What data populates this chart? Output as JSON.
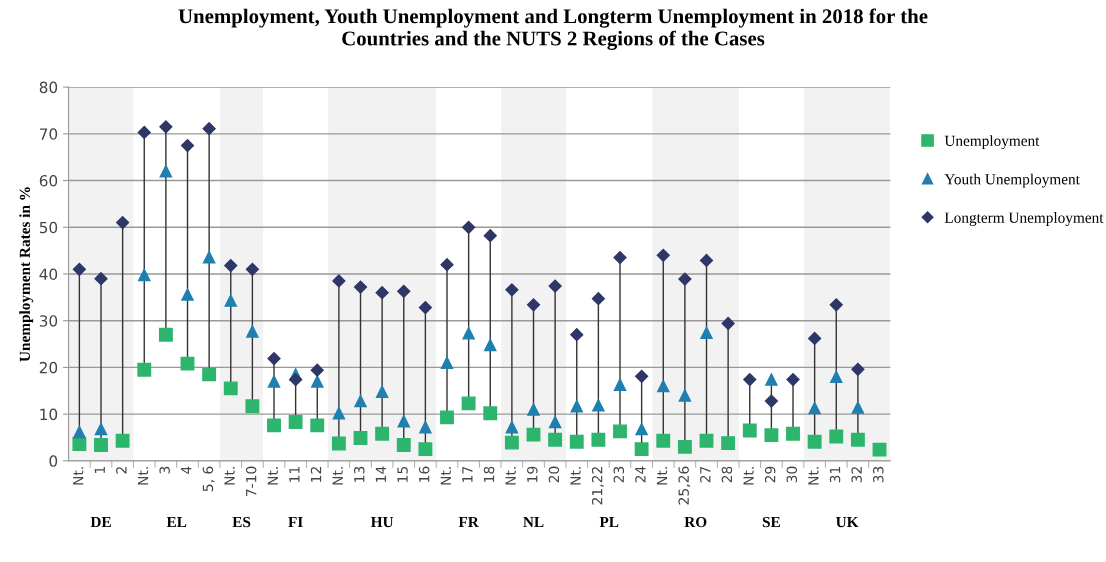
{
  "chart_data": {
    "type": "scatter",
    "title": "Unemployment, Youth Unemployment and Longterm Unemployment in 2018 for the\nCountries and the NUTS 2 Regions of the Cases",
    "ylabel": "Unemployment Rates in %",
    "categories": [
      "Nt.",
      "1",
      "2",
      "Nt.",
      "3",
      "4",
      "5, 6",
      "Nt.",
      "7-10",
      "Nt.",
      "11",
      "12",
      "Nt.",
      "13",
      "14",
      "15",
      "16",
      "Nt.",
      "17",
      "18",
      "Nt.",
      "19",
      "20",
      "Nt.",
      "21,22",
      "23",
      "24",
      "Nt.",
      "25,26",
      "27",
      "28",
      "Nt.",
      "29",
      "30",
      "Nt.",
      "31",
      "32",
      "33"
    ],
    "series": [
      {
        "name": "Unemployment",
        "color": "#2db56e",
        "marker": "square",
        "values": [
          3.6,
          3.4,
          4.3,
          19.5,
          27,
          20.8,
          18.5,
          15.5,
          11.7,
          7.6,
          8.3,
          7.6,
          3.7,
          4.9,
          5.8,
          3.4,
          2.5,
          9.3,
          12.3,
          10.2,
          3.9,
          5.6,
          4.5,
          4.1,
          4.5,
          6.3,
          2.5,
          4.3,
          3.0,
          4.3,
          3.8,
          6.5,
          5.5,
          5.8,
          4.1,
          5.2,
          4.5,
          2.4
        ]
      },
      {
        "name": "Youth Unemployment",
        "color": "#1f80b0",
        "marker": "triangle",
        "values": [
          6.2,
          6.8,
          null,
          39.8,
          62,
          35.6,
          43.6,
          34.3,
          27.7,
          17,
          18.5,
          17,
          10.2,
          12.8,
          14.8,
          8.5,
          7.2,
          21,
          27.3,
          24.8,
          7.2,
          11,
          8.3,
          11.7,
          11.9,
          16.3,
          6.8,
          16,
          14,
          27.4,
          null,
          null,
          17.4,
          null,
          11.3,
          18,
          11.4,
          null
        ]
      },
      {
        "name": "Longterm Unemployment",
        "color": "#2e3768",
        "marker": "diamond",
        "values": [
          41,
          39,
          51,
          70.3,
          71.5,
          67.5,
          71.1,
          41.8,
          41,
          21.9,
          17.4,
          19.4,
          38.5,
          37.2,
          36,
          36.3,
          32.8,
          42,
          50,
          48.2,
          36.6,
          33.4,
          37.4,
          27,
          34.7,
          43.5,
          18.1,
          44,
          38.9,
          42.9,
          29.4,
          17.4,
          12.8,
          17.4,
          26.2,
          33.4,
          19.6,
          null
        ]
      }
    ],
    "ylim": [
      0,
      80
    ],
    "yticks": [
      0,
      10,
      20,
      30,
      40,
      50,
      60,
      70,
      80
    ],
    "grid": "y",
    "legend": "right",
    "annotations": [
      "DE",
      "EL",
      "ES",
      "FI",
      "HU",
      "FR",
      "NL",
      "PL",
      "RO",
      "SE",
      "UK"
    ]
  }
}
